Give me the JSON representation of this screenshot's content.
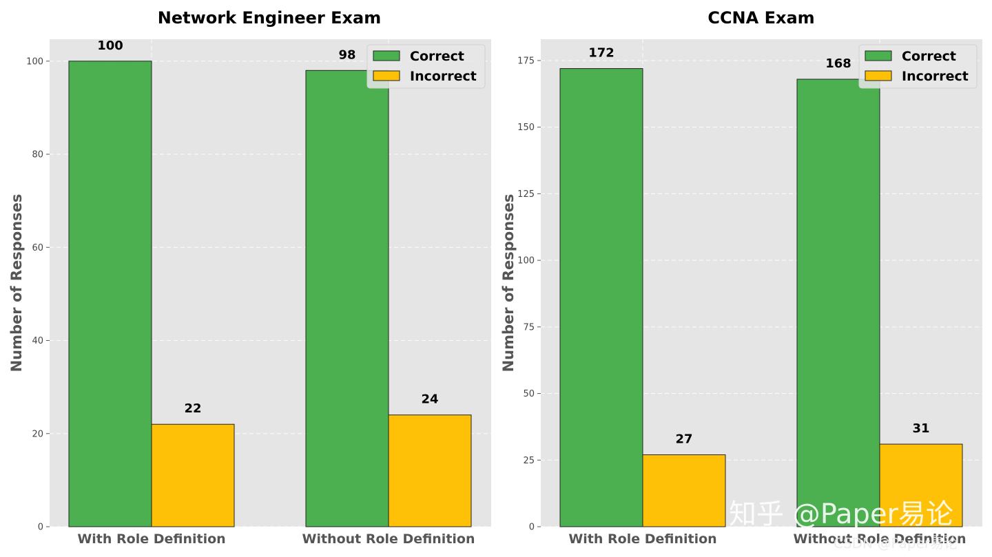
{
  "colors": {
    "correct": "#4caf50",
    "incorrect": "#ffc107",
    "panel": "#e5e5e5",
    "grid": "#ffffff"
  },
  "chart_data": [
    {
      "type": "bar",
      "title": "Network Engineer Exam",
      "ylabel": "Number of Responses",
      "xlabel": "",
      "categories": [
        "With Role Definition",
        "Without Role Definition"
      ],
      "series": [
        {
          "name": "Correct",
          "values": [
            100,
            98
          ]
        },
        {
          "name": "Incorrect",
          "values": [
            22,
            24
          ]
        }
      ],
      "ylim": [
        0,
        104.7
      ],
      "yticks": [
        0,
        20,
        40,
        60,
        80,
        100
      ],
      "grid": true,
      "legend": "top-right"
    },
    {
      "type": "bar",
      "title": "CCNA Exam",
      "ylabel": "Number of Responses",
      "xlabel": "",
      "categories": [
        "With Role Definition",
        "Without Role Definition"
      ],
      "series": [
        {
          "name": "Correct",
          "values": [
            172,
            168
          ]
        },
        {
          "name": "Incorrect",
          "values": [
            27,
            31
          ]
        }
      ],
      "ylim": [
        0,
        183
      ],
      "yticks": [
        0,
        25,
        50,
        75,
        100,
        125,
        150,
        175
      ],
      "grid": true,
      "legend": "top-right"
    }
  ],
  "watermark": {
    "main": "知乎 @Paper易论",
    "sub": "CSDN @Paper易论"
  }
}
